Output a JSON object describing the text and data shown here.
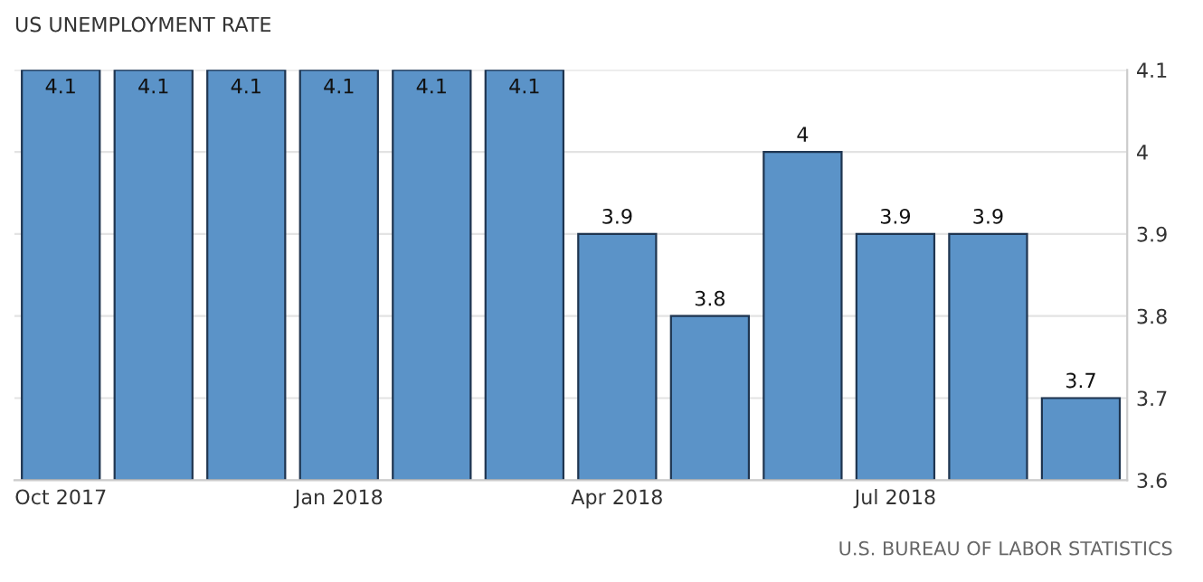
{
  "chart_data": {
    "type": "bar",
    "title": "US UNEMPLOYMENT RATE",
    "categories": [
      "Oct 2017",
      null,
      null,
      "Jan 2018",
      null,
      null,
      "Apr 2018",
      null,
      null,
      "Jul 2018",
      null,
      null
    ],
    "values": [
      4.1,
      4.1,
      4.1,
      4.1,
      4.1,
      4.1,
      3.9,
      3.8,
      4,
      3.9,
      3.9,
      3.7
    ],
    "color": "#5b93c8",
    "ylim": [
      3.6,
      4.1
    ],
    "yticks": [
      3.6,
      3.7,
      3.8,
      3.9,
      4,
      4.1
    ],
    "grid": "y",
    "data_labels": true,
    "annotations": [
      "U.S. BUREAU OF LABOR STATISTICS"
    ]
  }
}
